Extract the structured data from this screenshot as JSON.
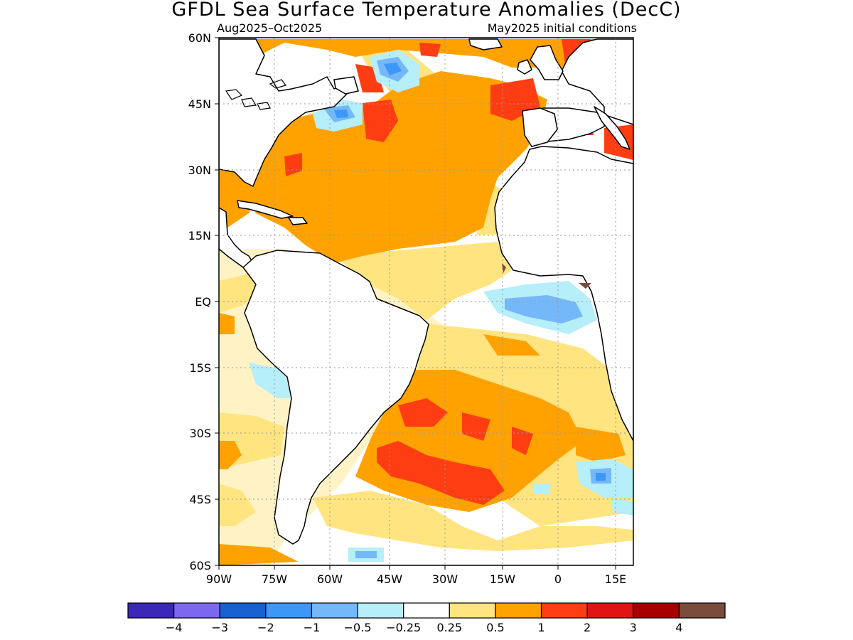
{
  "map": {
    "title": "GFDL Sea Surface Temperature Anomalies (DecC)",
    "period": "Aug2025–Oct2025",
    "initial_conditions": "May2025 initial conditions",
    "lat_ticks": [
      "60N",
      "45N",
      "30N",
      "15N",
      "EQ",
      "15S",
      "30S",
      "45S",
      "60S"
    ],
    "lon_ticks": [
      "90W",
      "75W",
      "60W",
      "45W",
      "30W",
      "15W",
      "0",
      "15E"
    ]
  },
  "colorbar": {
    "colors": [
      "#3b27b8",
      "#7b68ee",
      "#1660d2",
      "#3d97f6",
      "#75b8f9",
      "#b6eef9",
      "#ffffff",
      "#ffe480",
      "#ffa200",
      "#ff3d13",
      "#e01414",
      "#a60000",
      "#7a4c3c"
    ],
    "labels": [
      "−4",
      "−3",
      "−2",
      "−1",
      "−0.5",
      "−0.25",
      "0.25",
      "0.5",
      "1",
      "2",
      "3",
      "4"
    ]
  },
  "legend_colors": {
    "anomaly_0_25_to_0_5": "#ffe480",
    "anomaly_0_5_to_1": "#ffa200",
    "anomaly_1_to_2": "#ff3d13",
    "anomaly_minus_0_5_to_minus_0_25": "#b6eef9",
    "anomaly_minus_1_to_minus_0_5": "#75b8f9",
    "anomaly_minus_2_to_minus_1": "#3d97f6",
    "anomaly_above_4": "#7a4c3c"
  }
}
